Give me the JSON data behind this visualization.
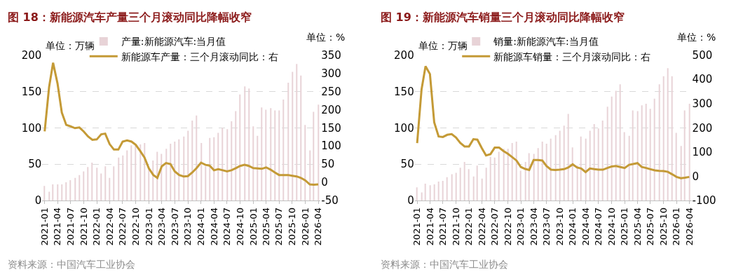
{
  "chart_data": [
    {
      "type": "bar",
      "title": "图 18：新能源汽车产量三个月滚动同比降幅收窄",
      "ylabel": "单位：万辆",
      "y2label": "单位：%",
      "legend": "top",
      "grid": "y",
      "marker": "none",
      "line_style": "solid",
      "x": [
        "2021-01",
        "2021-02",
        "2021-03",
        "2021-04",
        "2021-05",
        "2021-06",
        "2021-07",
        "2021-08",
        "2021-09",
        "2021-10",
        "2021-11",
        "2021-12",
        "2022-01",
        "2022-02",
        "2022-03",
        "2022-04",
        "2022-05",
        "2022-06",
        "2022-07",
        "2022-08",
        "2022-09",
        "2022-10",
        "2022-11",
        "2022-12",
        "2023-01",
        "2023-02",
        "2023-03",
        "2023-04",
        "2023-05",
        "2023-06",
        "2023-07",
        "2023-08",
        "2023-09",
        "2023-10",
        "2023-11",
        "2023-12",
        "2024-01",
        "2024-02",
        "2024-03",
        "2024-04",
        "2024-05",
        "2024-06",
        "2024-07",
        "2024-08",
        "2024-09",
        "2024-10",
        "2024-11",
        "2024-12",
        "2025-01",
        "2025-02",
        "2025-03",
        "2025-04",
        "2025-05",
        "2025-06",
        "2025-07",
        "2025-08",
        "2025-09",
        "2025-10",
        "2025-11",
        "2025-12",
        "2026-01",
        "2026-02",
        "2026-03",
        "2026-04"
      ],
      "xlim": [
        "2020-12-15",
        "2026-04-17"
      ],
      "xticks": [
        "2021-01",
        "2021-04",
        "2021-07",
        "2021-10",
        "2022-01",
        "2022-04",
        "2022-07",
        "2022-10",
        "2023-01",
        "2023-04",
        "2023-07",
        "2023-10",
        "2024-01",
        "2024-04",
        "2024-07",
        "2024-10",
        "2025-01",
        "2025-04",
        "2025-07",
        "2025-10",
        "2026-01",
        "2026-04"
      ],
      "ylim": [
        0,
        200
      ],
      "yticks": [
        0,
        50,
        100,
        150,
        200
      ],
      "y2lim": [
        -50,
        350
      ],
      "y2ticks": [
        -50,
        0,
        50,
        100,
        150,
        200,
        250,
        300,
        350
      ],
      "series": [
        {
          "name": "产量:新能源汽车:当月值",
          "color": "#e8d3d7",
          "values": [
            20,
            12,
            22,
            22,
            22,
            25,
            28,
            31,
            35,
            40,
            46,
            52,
            45,
            37,
            47,
            31,
            47,
            59,
            62,
            69,
            76,
            76,
            77,
            79,
            43,
            55,
            67,
            64,
            71,
            78,
            81,
            84,
            88,
            96,
            110,
            117,
            79,
            47,
            86,
            87,
            93,
            100,
            98,
            109,
            123,
            146,
            157,
            154,
            102,
            89,
            128,
            125,
            127,
            124,
            124,
            139,
            162,
            177,
            188,
            172,
            104,
            69,
            122,
            132
          ]
        },
        {
          "name": "新能源车产量：三个月滚动同比：右",
          "type": "line",
          "axis": "y2",
          "color": "#c49a36",
          "values": [
            140,
            262,
            329,
            272,
            192,
            158,
            154,
            149,
            151,
            140,
            126,
            117,
            118,
            132,
            134,
            105,
            90,
            90,
            112,
            115,
            112,
            103,
            86,
            68,
            38,
            20,
            12,
            44,
            53,
            50,
            30,
            20,
            16,
            17,
            27,
            39,
            54,
            48,
            46,
            33,
            36,
            33,
            30,
            33,
            39,
            45,
            48,
            45,
            39,
            38,
            37,
            41,
            35,
            27,
            20,
            20,
            20,
            18,
            16,
            12,
            5,
            -6,
            -7,
            -6
          ]
        }
      ],
      "annotations": [
        "资料来源：中国汽车工业协会"
      ]
    },
    {
      "type": "bar",
      "title": "图 19：新能源汽车销量三个月滚动同比降幅收窄",
      "ylabel": "单位：万辆",
      "y2label": "单位：%",
      "legend": "top",
      "grid": "y",
      "marker": "none",
      "line_style": "solid",
      "x": [
        "2021-01",
        "2021-02",
        "2021-03",
        "2021-04",
        "2021-05",
        "2021-06",
        "2021-07",
        "2021-08",
        "2021-09",
        "2021-10",
        "2021-11",
        "2021-12",
        "2022-01",
        "2022-02",
        "2022-03",
        "2022-04",
        "2022-05",
        "2022-06",
        "2022-07",
        "2022-08",
        "2022-09",
        "2022-10",
        "2022-11",
        "2022-12",
        "2023-01",
        "2023-02",
        "2023-03",
        "2023-04",
        "2023-05",
        "2023-06",
        "2023-07",
        "2023-08",
        "2023-09",
        "2023-10",
        "2023-11",
        "2023-12",
        "2024-01",
        "2024-02",
        "2024-03",
        "2024-04",
        "2024-05",
        "2024-06",
        "2024-07",
        "2024-08",
        "2024-09",
        "2024-10",
        "2024-11",
        "2024-12",
        "2025-01",
        "2025-02",
        "2025-03",
        "2025-04",
        "2025-05",
        "2025-06",
        "2025-07",
        "2025-08",
        "2025-09",
        "2025-10",
        "2025-11",
        "2025-12",
        "2026-01",
        "2026-02",
        "2026-03",
        "2026-04"
      ],
      "xlim": [
        "2020-12-15",
        "2026-04-17"
      ],
      "xticks": [
        "2021-01",
        "2021-04",
        "2021-07",
        "2021-10",
        "2022-01",
        "2022-04",
        "2022-07",
        "2022-10",
        "2023-01",
        "2023-04",
        "2023-07",
        "2023-10",
        "2024-01",
        "2024-04",
        "2024-07",
        "2024-10",
        "2025-01",
        "2025-04",
        "2025-07",
        "2025-10",
        "2026-01",
        "2026-04"
      ],
      "ylim": [
        0,
        200
      ],
      "yticks": [
        0,
        50,
        100,
        150,
        200
      ],
      "y2lim": [
        -100,
        500
      ],
      "y2ticks": [
        -100,
        0,
        100,
        200,
        300,
        400,
        500
      ],
      "series": [
        {
          "name": "销量:新能源汽车:当月值",
          "color": "#e8d3d7",
          "values": [
            18,
            11,
            23,
            21,
            22,
            26,
            27,
            32,
            36,
            38,
            45,
            53,
            43,
            33,
            48,
            30,
            45,
            60,
            59,
            67,
            71,
            71,
            79,
            81,
            41,
            53,
            65,
            64,
            72,
            81,
            78,
            85,
            90,
            96,
            103,
            119,
            73,
            48,
            88,
            85,
            96,
            105,
            99,
            110,
            129,
            143,
            151,
            160,
            94,
            89,
            124,
            123,
            131,
            133,
            126,
            140,
            160,
            171,
            182,
            171,
            93,
            75,
            124,
            133
          ]
        },
        {
          "name": "新能源车销量：三个月滚动同比：右",
          "type": "line",
          "axis": "y2",
          "color": "#c49a36",
          "values": [
            137,
            359,
            454,
            422,
            223,
            164,
            162,
            171,
            174,
            160,
            137,
            123,
            123,
            153,
            151,
            116,
            86,
            91,
            118,
            118,
            104,
            93,
            79,
            65,
            38,
            30,
            26,
            67,
            67,
            65,
            42,
            27,
            26,
            27,
            29,
            36,
            49,
            36,
            32,
            17,
            32,
            29,
            27,
            27,
            34,
            40,
            42,
            38,
            34,
            47,
            50,
            54,
            38,
            34,
            29,
            24,
            22,
            21,
            18,
            8,
            -3,
            -8,
            -6,
            -3
          ]
        }
      ],
      "annotations": [
        "资料来源：中国汽车工业协会"
      ]
    }
  ]
}
